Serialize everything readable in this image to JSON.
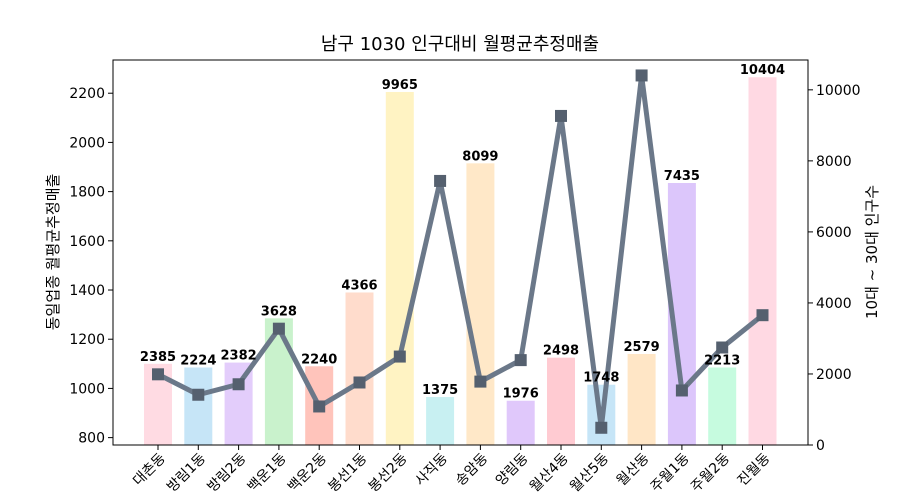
{
  "chart_data": {
    "type": "bar",
    "title": "남구 1030 인구대비 월평균추정매출",
    "ylabel": "동일업종 월평균추정매출",
    "y2label": "10대 ~ 30대 인구수",
    "categories": [
      "대촌동",
      "방림1동",
      "방림2동",
      "백운1동",
      "백운2동",
      "봉선1동",
      "봉선2동",
      "사직동",
      "송암동",
      "양림동",
      "월산4동",
      "월산5동",
      "월산동",
      "주월1동",
      "주월2동",
      "진월동"
    ],
    "ylim": [
      770,
      2335
    ],
    "y2lim": [
      0,
      10840
    ],
    "yticks": [
      800,
      1000,
      1200,
      1400,
      1600,
      1800,
      2000,
      2200
    ],
    "y2ticks": [
      0,
      2000,
      4000,
      6000,
      8000,
      10000
    ],
    "series": [
      {
        "axis": "left",
        "kind": "bar",
        "values": [
          1100,
          1085,
          1105,
          1285,
          1090,
          1390,
          2205,
          965,
          1915,
          950,
          1125,
          1015,
          1140,
          1835,
          1085,
          2265
        ],
        "data_labels": [
          "2385",
          "2224",
          "2382",
          "3628",
          "2240",
          "4366",
          "9965",
          "1375",
          "8099",
          "1976",
          "2498",
          "1748",
          "2579",
          "7435",
          "2213",
          "10404"
        ],
        "colors": [
          "#ffdbe3",
          "#c6e5f7",
          "#e3cdfb",
          "#c9f2cc",
          "#ffc4bb",
          "#ffdccc",
          "#fff3c3",
          "#c8f0f2",
          "#ffe8c8",
          "#e0c8fb",
          "#ffcbd2",
          "#c6e5f7",
          "#ffe6c6",
          "#dcc6fb",
          "#c6fbdf",
          "#ffd9e3"
        ]
      },
      {
        "axis": "right",
        "kind": "line",
        "values": [
          1990,
          1415,
          1710,
          3275,
          1085,
          1760,
          2490,
          7435,
          1785,
          2390,
          9265,
          485,
          10405,
          1535,
          2745,
          3655
        ]
      }
    ],
    "line_color": "#6b7889",
    "grid": false,
    "legend": "none"
  }
}
